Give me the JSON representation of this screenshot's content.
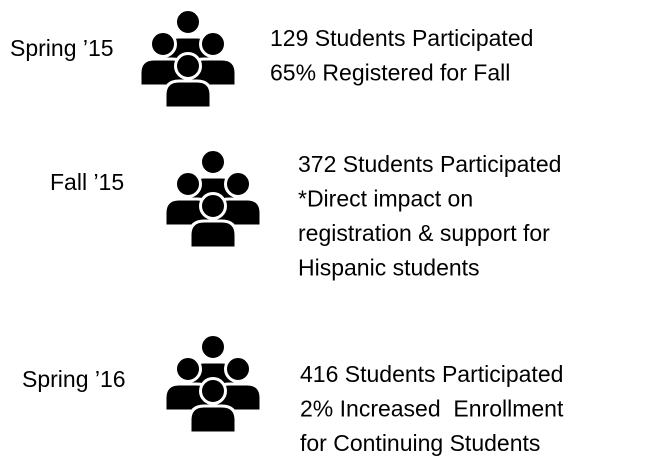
{
  "items": [
    {
      "term": "Spring ’15",
      "lines": [
        "129 Students Participated",
        "65% Registered for Fall"
      ]
    },
    {
      "term": "Fall ’15",
      "lines": [
        "372 Students Participated",
        "*Direct impact on",
        "registration & support for",
        "Hispanic students"
      ]
    },
    {
      "term": "Spring ’16",
      "lines": [
        "416 Students Participated",
        "2% Increased  Enrollment",
        "for Continuing Students"
      ]
    }
  ]
}
